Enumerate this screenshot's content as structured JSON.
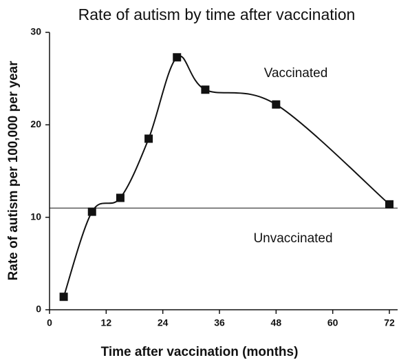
{
  "chart_data": {
    "type": "line",
    "title": "Rate of autism by time after vaccination",
    "xlabel": "Time after vaccination (months)",
    "ylabel": "Rate of autism per 100,000 per year",
    "x": [
      3,
      9,
      15,
      21,
      27,
      33,
      48,
      72
    ],
    "series": [
      {
        "name": "Vaccinated",
        "color": "#111111",
        "values": [
          1.4,
          10.6,
          12.1,
          18.5,
          27.3,
          23.8,
          22.2,
          11.4
        ]
      }
    ],
    "reference_line": {
      "name": "Unvaccinated",
      "value": 11.0
    },
    "xlim": [
      0,
      72
    ],
    "xticks": [
      0,
      12,
      24,
      36,
      48,
      60,
      72
    ],
    "ylim": [
      0,
      30
    ],
    "yticks": [
      0,
      10,
      20,
      30
    ]
  }
}
